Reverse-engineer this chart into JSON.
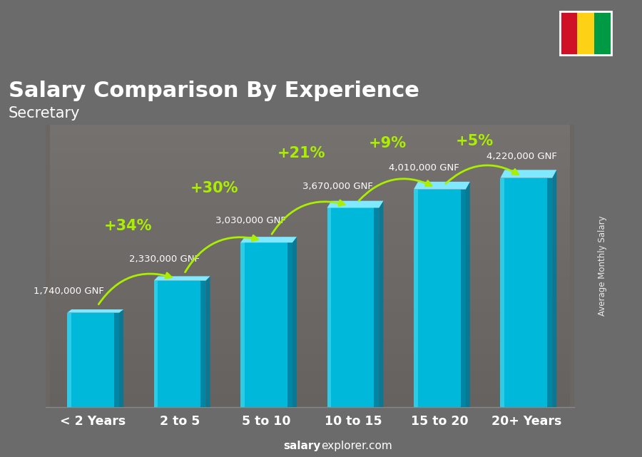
{
  "title": "Salary Comparison By Experience",
  "subtitle": "Secretary",
  "ylabel": "Average Monthly Salary",
  "categories": [
    "< 2 Years",
    "2 to 5",
    "5 to 10",
    "10 to 15",
    "15 to 20",
    "20+ Years"
  ],
  "values": [
    1740000,
    2330000,
    3030000,
    3670000,
    4010000,
    4220000
  ],
  "labels": [
    "1,740,000 GNF",
    "2,330,000 GNF",
    "3,030,000 GNF",
    "3,670,000 GNF",
    "4,010,000 GNF",
    "4,220,000 GNF"
  ],
  "pct_changes": [
    "+34%",
    "+30%",
    "+21%",
    "+9%",
    "+5%"
  ],
  "bar_color_main": "#00B8D9",
  "bar_color_light": "#4DD8F0",
  "bar_color_dark": "#007A99",
  "bar_color_top": "#80E8FF",
  "pct_color": "#AAEE00",
  "bg_color": "#6B6B6B",
  "title_color": "#FFFFFF",
  "label_color": "#FFFFFF",
  "footer_bold": "salary",
  "footer_normal": "explorer.com",
  "flag_colors": [
    "#CE1126",
    "#FCD116",
    "#009A44"
  ],
  "ylim": [
    0,
    5200000
  ],
  "bar_width": 0.6
}
